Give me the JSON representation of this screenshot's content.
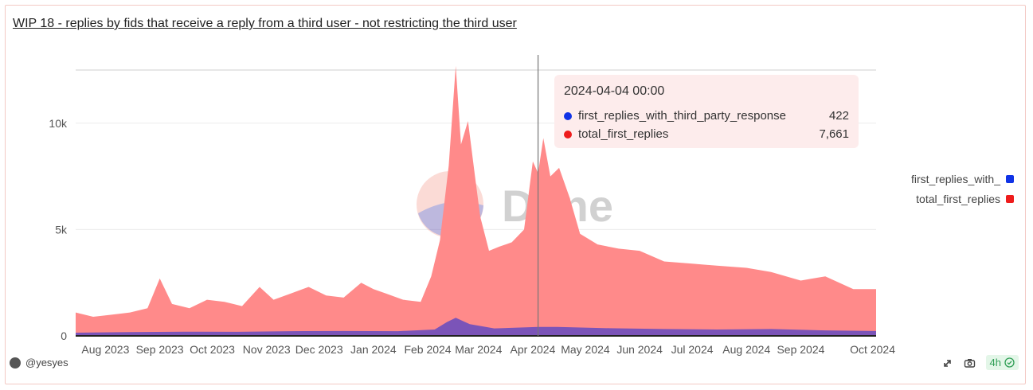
{
  "title": "WIP 18 - replies by fids that receive a reply from a third user - not restricting the third user",
  "author": "@yesyes",
  "refresh_badge": "4h",
  "watermark_text": "Dune",
  "icons": {
    "avatar": "avatar-icon",
    "share": "share-icon",
    "camera": "camera-icon",
    "check": "check-circle-icon"
  },
  "colors": {
    "total": "#ff8a8a",
    "third": "#7b54b8",
    "third_dot": "#1033e6",
    "total_dot": "#ee1c1c",
    "tooltip_bg": "#fdecec"
  },
  "tooltip": {
    "date": "2024-04-04 00:00",
    "rows": [
      {
        "name": "first_replies_with_third_party_response",
        "value": "422"
      },
      {
        "name": "total_first_replies",
        "value": "7,661"
      }
    ]
  },
  "legend": [
    {
      "label": "first_replies_with_"
    },
    {
      "label": "total_first_replies"
    }
  ],
  "chart_data": {
    "type": "area",
    "stacked": false,
    "x_range": [
      "2023-07-15",
      "2024-10-14"
    ],
    "ylim": [
      0,
      12500
    ],
    "y_ticks": [
      0,
      5000,
      10000
    ],
    "y_tick_labels": [
      "0",
      "5k",
      "10k"
    ],
    "x_tick_labels": [
      "Aug 2023",
      "Sep 2023",
      "Oct 2023",
      "Nov 2023",
      "Dec 2023",
      "Jan 2024",
      "Feb 2024",
      "Mar 2024",
      "Apr 2024",
      "May 2024",
      "Jun 2024",
      "Jul 2024",
      "Aug 2024",
      "Sep 2024",
      "Oct 2024"
    ],
    "x_tick_dates": [
      "2023-08-01",
      "2023-09-01",
      "2023-10-01",
      "2023-11-01",
      "2023-12-01",
      "2024-01-01",
      "2024-02-01",
      "2024-03-01",
      "2024-04-01",
      "2024-05-01",
      "2024-06-01",
      "2024-07-01",
      "2024-08-01",
      "2024-09-01",
      "2024-10-01"
    ],
    "grid": true,
    "legend_position": "right",
    "highlight_date": "2024-04-04",
    "series": [
      {
        "name": "total_first_replies",
        "points": [
          [
            "2023-07-15",
            1100
          ],
          [
            "2023-07-25",
            900
          ],
          [
            "2023-08-05",
            1000
          ],
          [
            "2023-08-15",
            1100
          ],
          [
            "2023-08-25",
            1300
          ],
          [
            "2023-09-01",
            2700
          ],
          [
            "2023-09-08",
            1500
          ],
          [
            "2023-09-18",
            1300
          ],
          [
            "2023-09-28",
            1700
          ],
          [
            "2023-10-08",
            1600
          ],
          [
            "2023-10-18",
            1400
          ],
          [
            "2023-10-28",
            2300
          ],
          [
            "2023-11-05",
            1700
          ],
          [
            "2023-11-15",
            2000
          ],
          [
            "2023-11-25",
            2300
          ],
          [
            "2023-12-05",
            1900
          ],
          [
            "2023-12-15",
            1800
          ],
          [
            "2023-12-25",
            2500
          ],
          [
            "2024-01-01",
            2200
          ],
          [
            "2024-01-08",
            2000
          ],
          [
            "2024-01-18",
            1700
          ],
          [
            "2024-01-28",
            1600
          ],
          [
            "2024-02-03",
            2800
          ],
          [
            "2024-02-08",
            4500
          ],
          [
            "2024-02-13",
            8000
          ],
          [
            "2024-02-17",
            12700
          ],
          [
            "2024-02-20",
            9000
          ],
          [
            "2024-02-24",
            10100
          ],
          [
            "2024-02-28",
            7500
          ],
          [
            "2024-03-02",
            5600
          ],
          [
            "2024-03-07",
            4000
          ],
          [
            "2024-03-13",
            4200
          ],
          [
            "2024-03-20",
            4400
          ],
          [
            "2024-03-27",
            5000
          ],
          [
            "2024-04-01",
            8200
          ],
          [
            "2024-04-04",
            7661
          ],
          [
            "2024-04-07",
            9300
          ],
          [
            "2024-04-11",
            7500
          ],
          [
            "2024-04-16",
            7900
          ],
          [
            "2024-04-22",
            6500
          ],
          [
            "2024-04-28",
            4800
          ],
          [
            "2024-05-08",
            4300
          ],
          [
            "2024-05-20",
            4100
          ],
          [
            "2024-06-01",
            4000
          ],
          [
            "2024-06-15",
            3500
          ],
          [
            "2024-07-01",
            3400
          ],
          [
            "2024-07-15",
            3300
          ],
          [
            "2024-08-01",
            3200
          ],
          [
            "2024-08-15",
            3000
          ],
          [
            "2024-09-01",
            2600
          ],
          [
            "2024-09-15",
            2800
          ],
          [
            "2024-10-01",
            2200
          ],
          [
            "2024-10-14",
            2200
          ]
        ]
      },
      {
        "name": "first_replies_with_third_party_response",
        "points": [
          [
            "2023-07-15",
            150
          ],
          [
            "2023-08-15",
            180
          ],
          [
            "2023-09-15",
            200
          ],
          [
            "2023-10-15",
            190
          ],
          [
            "2023-11-15",
            220
          ],
          [
            "2023-12-15",
            230
          ],
          [
            "2024-01-15",
            220
          ],
          [
            "2024-02-05",
            300
          ],
          [
            "2024-02-12",
            650
          ],
          [
            "2024-02-17",
            850
          ],
          [
            "2024-02-25",
            550
          ],
          [
            "2024-03-10",
            350
          ],
          [
            "2024-04-04",
            422
          ],
          [
            "2024-04-15",
            420
          ],
          [
            "2024-05-15",
            360
          ],
          [
            "2024-06-15",
            320
          ],
          [
            "2024-07-15",
            300
          ],
          [
            "2024-08-15",
            320
          ],
          [
            "2024-09-15",
            260
          ],
          [
            "2024-10-14",
            230
          ]
        ]
      }
    ]
  }
}
